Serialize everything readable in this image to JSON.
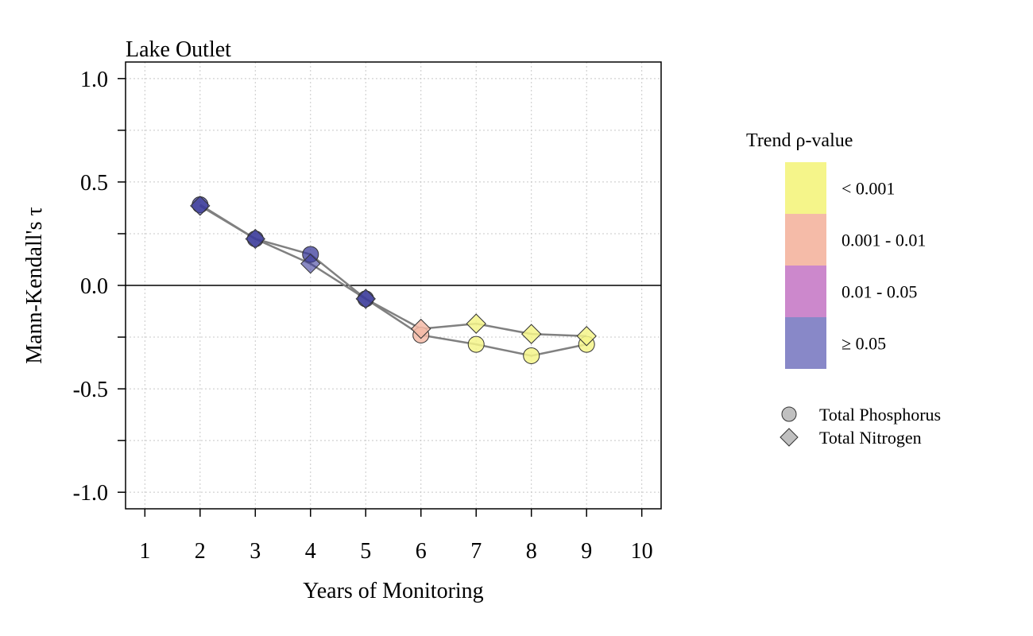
{
  "chart_data": {
    "type": "line",
    "title": "Lake Outlet",
    "xlabel": "Years of Monitoring",
    "ylabel": "Mann-Kendall's τ",
    "xlim": [
      0.65,
      10.35
    ],
    "ylim": [
      -1.08,
      1.08
    ],
    "xticks": [
      1,
      2,
      3,
      4,
      5,
      6,
      7,
      8,
      9,
      10
    ],
    "yticks_major": [
      1.0,
      0.5,
      0.0,
      -0.5,
      -1.0
    ],
    "ytick_labels": [
      "1.0",
      "0.5",
      "0.0",
      "-0.5",
      "-1.0"
    ],
    "yticks_minor": [
      0.75,
      0.25,
      -0.25,
      -0.75
    ],
    "grid": true,
    "zero_line": true,
    "legend_title": "Trend ρ-value",
    "legend_placement": "right",
    "pvalue_bins": [
      {
        "label": "< 0.001",
        "color": "#f5f58a"
      },
      {
        "label": "0.001 - 0.01",
        "color": "#f5bba8"
      },
      {
        "label": "0.01 - 0.05",
        "color": "#cc88cc"
      },
      {
        "label": "≥ 0.05",
        "color": "#8888c8"
      }
    ],
    "series": [
      {
        "name": "Total Phosphorus",
        "marker": "circle",
        "x": [
          2,
          3,
          4,
          5,
          6,
          7,
          8,
          9
        ],
        "y": [
          0.39,
          0.225,
          0.15,
          -0.065,
          -0.24,
          -0.285,
          -0.34,
          -0.285
        ],
        "bin": [
          3,
          3,
          3,
          3,
          1,
          0,
          0,
          0
        ]
      },
      {
        "name": "Total Nitrogen",
        "marker": "diamond",
        "x": [
          2,
          3,
          4,
          5,
          6,
          7,
          8,
          9
        ],
        "y": [
          0.385,
          0.225,
          0.105,
          -0.065,
          -0.21,
          -0.185,
          -0.235,
          -0.245
        ],
        "bin": [
          3,
          3,
          3,
          3,
          1,
          0,
          0,
          0
        ]
      }
    ],
    "marker_fill_alpha_note": "",
    "line_color": "#808080",
    "marker_dark_color": "#3a3a9a",
    "legend_marker_color": "#c0c0c0"
  }
}
